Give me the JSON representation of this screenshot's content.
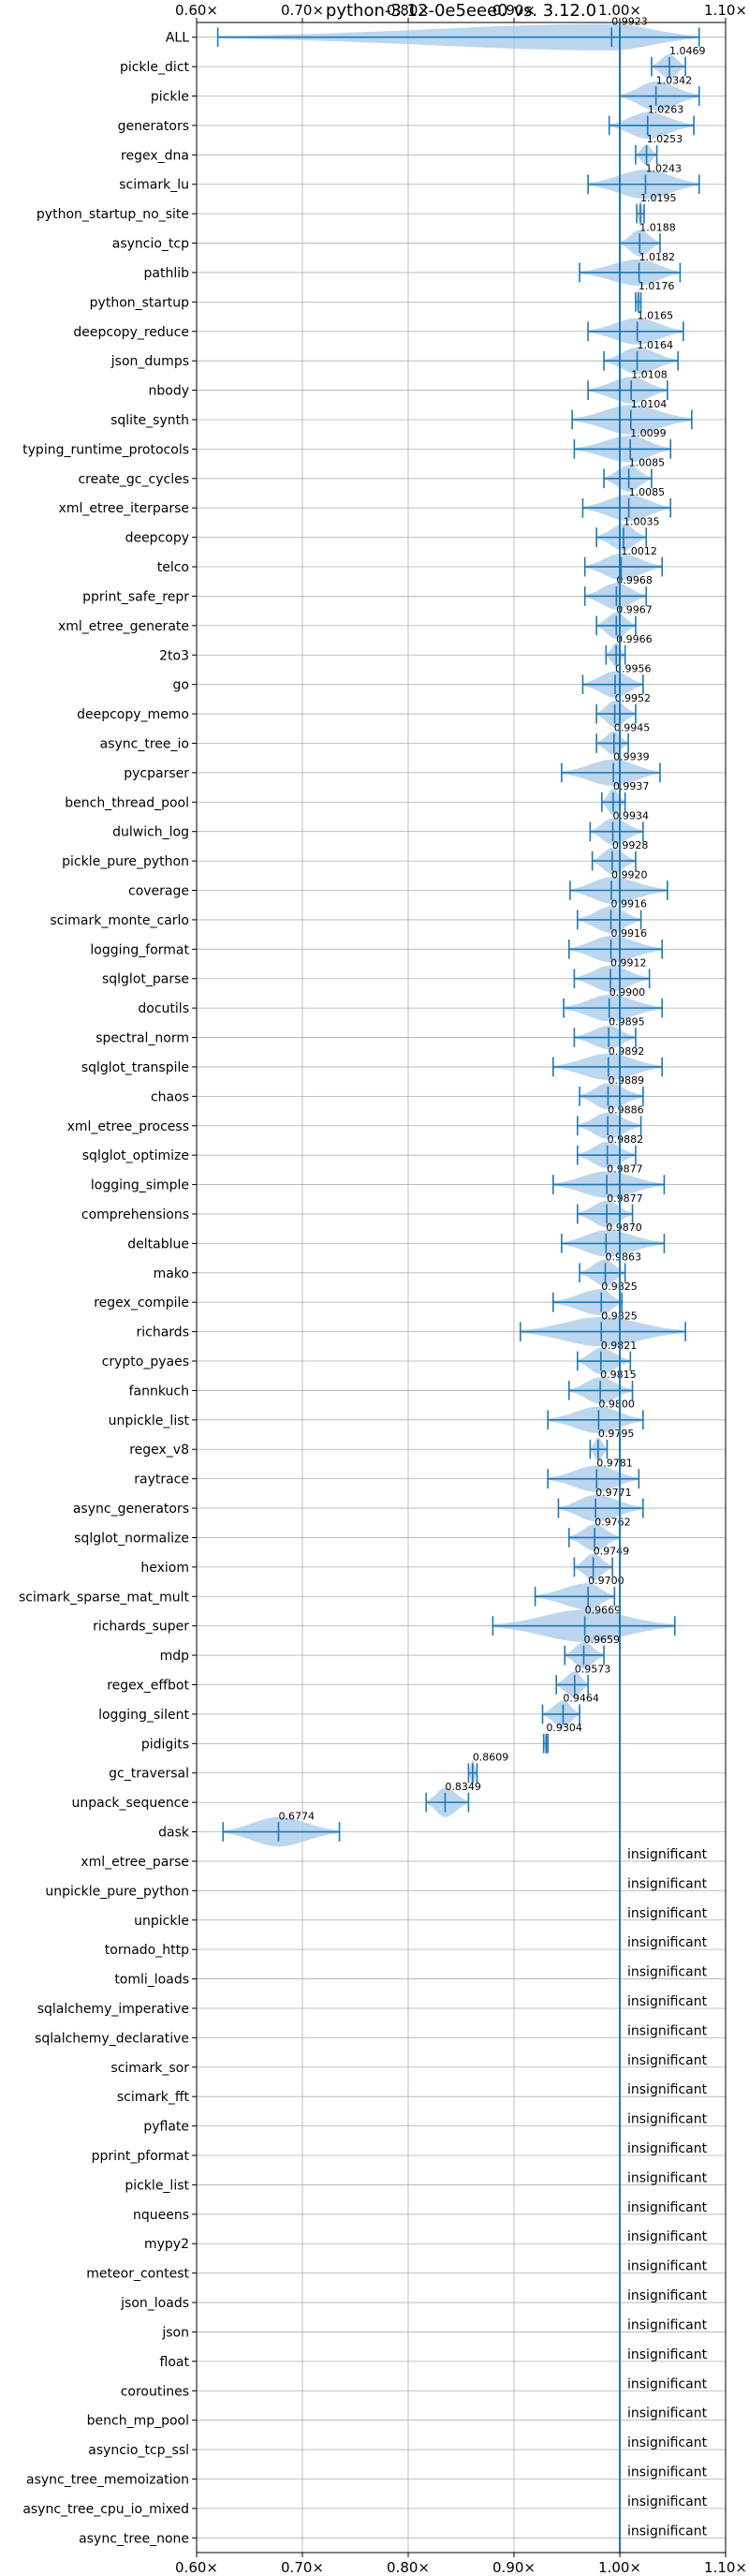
{
  "chart_data": {
    "type": "violin",
    "title": "python-3.12-0e5eee0 vs. 3.12.0",
    "xlim": [
      0.6,
      1.1
    ],
    "xticks": [
      {
        "value": 0.6,
        "label": "0.60×"
      },
      {
        "value": 0.7,
        "label": "0.70×"
      },
      {
        "value": 0.8,
        "label": "0.80×"
      },
      {
        "value": 0.9,
        "label": "0.90×"
      },
      {
        "value": 1.0,
        "label": "1.00×"
      },
      {
        "value": 1.1,
        "label": "1.10×"
      }
    ],
    "ticks_top_and_bottom": true,
    "grid": true,
    "reference_line": 1.0,
    "colors": {
      "violin": "#a6c8e8",
      "whisker": "#1f77b4",
      "grid": "#b0b0b0",
      "refline": "#1f77b4"
    },
    "insignificant_label": "insignificant",
    "benchmarks": [
      {
        "name": "ALL",
        "label": "0.9923",
        "center": 0.9923,
        "min": 0.62,
        "max": 1.075,
        "width": 0.45
      },
      {
        "name": "pickle_dict",
        "label": "1.0469",
        "center": 1.0469,
        "min": 1.03,
        "max": 1.062,
        "width": 0.42
      },
      {
        "name": "pickle",
        "label": "1.0342",
        "center": 1.0342,
        "min": 1.0,
        "max": 1.075,
        "width": 0.5
      },
      {
        "name": "generators",
        "label": "1.0263",
        "center": 1.0263,
        "min": 0.99,
        "max": 1.07,
        "width": 0.45
      },
      {
        "name": "regex_dna",
        "label": "1.0253",
        "center": 1.0253,
        "min": 1.015,
        "max": 1.035,
        "width": 0.35
      },
      {
        "name": "scimark_lu",
        "label": "1.0243",
        "center": 1.0243,
        "min": 0.97,
        "max": 1.075,
        "width": 0.5
      },
      {
        "name": "python_startup_no_site",
        "label": "1.0195",
        "center": 1.0195,
        "min": 1.016,
        "max": 1.023,
        "width": 0.45
      },
      {
        "name": "asyncio_tcp",
        "label": "1.0188",
        "center": 1.0188,
        "min": 1.0,
        "max": 1.038,
        "width": 0.45
      },
      {
        "name": "pathlib",
        "label": "1.0182",
        "center": 1.0182,
        "min": 0.962,
        "max": 1.057,
        "width": 0.45
      },
      {
        "name": "python_startup",
        "label": "1.0176",
        "center": 1.0176,
        "min": 1.015,
        "max": 1.02,
        "width": 0.45
      },
      {
        "name": "deepcopy_reduce",
        "label": "1.0165",
        "center": 1.0165,
        "min": 0.97,
        "max": 1.06,
        "width": 0.45
      },
      {
        "name": "json_dumps",
        "label": "1.0164",
        "center": 1.0164,
        "min": 0.985,
        "max": 1.055,
        "width": 0.45
      },
      {
        "name": "nbody",
        "label": "1.0108",
        "center": 1.0108,
        "min": 0.97,
        "max": 1.045,
        "width": 0.45
      },
      {
        "name": "sqlite_synth",
        "label": "1.0104",
        "center": 1.0104,
        "min": 0.955,
        "max": 1.068,
        "width": 0.5
      },
      {
        "name": "typing_runtime_protocols",
        "label": "1.0099",
        "center": 1.0099,
        "min": 0.957,
        "max": 1.048,
        "width": 0.45
      },
      {
        "name": "create_gc_cycles",
        "label": "1.0085",
        "center": 1.0085,
        "min": 0.985,
        "max": 1.03,
        "width": 0.45
      },
      {
        "name": "xml_etree_iterparse",
        "label": "1.0085",
        "center": 1.0085,
        "min": 0.965,
        "max": 1.048,
        "width": 0.45
      },
      {
        "name": "deepcopy",
        "label": "1.0035",
        "center": 1.0035,
        "min": 0.978,
        "max": 1.025,
        "width": 0.45
      },
      {
        "name": "telco",
        "label": "1.0012",
        "center": 1.0012,
        "min": 0.967,
        "max": 1.04,
        "width": 0.45
      },
      {
        "name": "pprint_safe_repr",
        "label": "0.9968",
        "center": 0.9968,
        "min": 0.967,
        "max": 1.025,
        "width": 0.45
      },
      {
        "name": "xml_etree_generate",
        "label": "0.9967",
        "center": 0.9967,
        "min": 0.978,
        "max": 1.015,
        "width": 0.45
      },
      {
        "name": "2to3",
        "label": "0.9966",
        "center": 0.9966,
        "min": 0.987,
        "max": 1.005,
        "width": 0.4
      },
      {
        "name": "go",
        "label": "0.9956",
        "center": 0.9956,
        "min": 0.965,
        "max": 1.022,
        "width": 0.45
      },
      {
        "name": "deepcopy_memo",
        "label": "0.9952",
        "center": 0.9952,
        "min": 0.978,
        "max": 1.015,
        "width": 0.45
      },
      {
        "name": "async_tree_io",
        "label": "0.9945",
        "center": 0.9945,
        "min": 0.978,
        "max": 1.008,
        "width": 0.4
      },
      {
        "name": "pycparser",
        "label": "0.9939",
        "center": 0.9939,
        "min": 0.945,
        "max": 1.038,
        "width": 0.45
      },
      {
        "name": "bench_thread_pool",
        "label": "0.9937",
        "center": 0.9937,
        "min": 0.983,
        "max": 1.005,
        "width": 0.45
      },
      {
        "name": "dulwich_log",
        "label": "0.9934",
        "center": 0.9934,
        "min": 0.972,
        "max": 1.022,
        "width": 0.45
      },
      {
        "name": "pickle_pure_python",
        "label": "0.9928",
        "center": 0.9928,
        "min": 0.974,
        "max": 1.015,
        "width": 0.45
      },
      {
        "name": "coverage",
        "label": "0.9920",
        "center": 0.992,
        "min": 0.953,
        "max": 1.045,
        "width": 0.45
      },
      {
        "name": "scimark_monte_carlo",
        "label": "0.9916",
        "center": 0.9916,
        "min": 0.96,
        "max": 1.02,
        "width": 0.45
      },
      {
        "name": "logging_format",
        "label": "0.9916",
        "center": 0.9916,
        "min": 0.952,
        "max": 1.04,
        "width": 0.45
      },
      {
        "name": "sqlglot_parse",
        "label": "0.9912",
        "center": 0.9912,
        "min": 0.957,
        "max": 1.028,
        "width": 0.45
      },
      {
        "name": "docutils",
        "label": "0.9900",
        "center": 0.99,
        "min": 0.947,
        "max": 1.04,
        "width": 0.45
      },
      {
        "name": "spectral_norm",
        "label": "0.9895",
        "center": 0.9895,
        "min": 0.957,
        "max": 1.015,
        "width": 0.4
      },
      {
        "name": "sqlglot_transpile",
        "label": "0.9892",
        "center": 0.9892,
        "min": 0.937,
        "max": 1.04,
        "width": 0.45
      },
      {
        "name": "chaos",
        "label": "0.9889",
        "center": 0.9889,
        "min": 0.962,
        "max": 1.022,
        "width": 0.45
      },
      {
        "name": "xml_etree_process",
        "label": "0.9886",
        "center": 0.9886,
        "min": 0.96,
        "max": 1.02,
        "width": 0.45
      },
      {
        "name": "sqlglot_optimize",
        "label": "0.9882",
        "center": 0.9882,
        "min": 0.96,
        "max": 1.015,
        "width": 0.45
      },
      {
        "name": "logging_simple",
        "label": "0.9877",
        "center": 0.9877,
        "min": 0.937,
        "max": 1.042,
        "width": 0.45
      },
      {
        "name": "comprehensions",
        "label": "0.9877",
        "center": 0.9877,
        "min": 0.96,
        "max": 1.012,
        "width": 0.45
      },
      {
        "name": "deltablue",
        "label": "0.9870",
        "center": 0.987,
        "min": 0.945,
        "max": 1.042,
        "width": 0.45
      },
      {
        "name": "mako",
        "label": "0.9863",
        "center": 0.9863,
        "min": 0.962,
        "max": 1.005,
        "width": 0.45
      },
      {
        "name": "regex_compile",
        "label": "0.9825",
        "center": 0.9825,
        "min": 0.937,
        "max": 1.002,
        "width": 0.45
      },
      {
        "name": "richards",
        "label": "0.9825",
        "center": 0.9825,
        "min": 0.906,
        "max": 1.062,
        "width": 0.5
      },
      {
        "name": "crypto_pyaes",
        "label": "0.9821",
        "center": 0.9821,
        "min": 0.96,
        "max": 1.01,
        "width": 0.45
      },
      {
        "name": "fannkuch",
        "label": "0.9815",
        "center": 0.9815,
        "min": 0.952,
        "max": 1.012,
        "width": 0.45
      },
      {
        "name": "unpickle_list",
        "label": "0.9800",
        "center": 0.98,
        "min": 0.932,
        "max": 1.022,
        "width": 0.45
      },
      {
        "name": "regex_v8",
        "label": "0.9795",
        "center": 0.9795,
        "min": 0.972,
        "max": 0.988,
        "width": 0.4
      },
      {
        "name": "raytrace",
        "label": "0.9781",
        "center": 0.9781,
        "min": 0.932,
        "max": 1.018,
        "width": 0.45
      },
      {
        "name": "async_generators",
        "label": "0.9771",
        "center": 0.9771,
        "min": 0.942,
        "max": 1.022,
        "width": 0.45
      },
      {
        "name": "sqlglot_normalize",
        "label": "0.9762",
        "center": 0.9762,
        "min": 0.952,
        "max": 1.0,
        "width": 0.45
      },
      {
        "name": "hexiom",
        "label": "0.9749",
        "center": 0.9749,
        "min": 0.957,
        "max": 0.993,
        "width": 0.45
      },
      {
        "name": "scimark_sparse_mat_mult",
        "label": "0.9700",
        "center": 0.97,
        "min": 0.92,
        "max": 0.995,
        "width": 0.45
      },
      {
        "name": "richards_super",
        "label": "0.9669",
        "center": 0.9669,
        "min": 0.88,
        "max": 1.052,
        "width": 0.55
      },
      {
        "name": "mdp",
        "label": "0.9659",
        "center": 0.9659,
        "min": 0.948,
        "max": 0.985,
        "width": 0.45
      },
      {
        "name": "regex_effbot",
        "label": "0.9573",
        "center": 0.9573,
        "min": 0.94,
        "max": 0.97,
        "width": 0.45
      },
      {
        "name": "logging_silent",
        "label": "0.9464",
        "center": 0.9464,
        "min": 0.927,
        "max": 0.962,
        "width": 0.45
      },
      {
        "name": "pidigits",
        "label": "0.9304",
        "center": 0.9304,
        "min": 0.928,
        "max": 0.932,
        "width": 0.4
      },
      {
        "name": "gc_traversal",
        "label": "0.8609",
        "center": 0.8609,
        "min": 0.857,
        "max": 0.865,
        "width": 0.45
      },
      {
        "name": "unpack_sequence",
        "label": "0.8349",
        "center": 0.8349,
        "min": 0.817,
        "max": 0.857,
        "width": 0.5
      },
      {
        "name": "dask",
        "label": "0.6774",
        "center": 0.6774,
        "min": 0.625,
        "max": 0.735,
        "width": 0.5
      },
      {
        "name": "xml_etree_parse",
        "insignificant": true
      },
      {
        "name": "unpickle_pure_python",
        "insignificant": true
      },
      {
        "name": "unpickle",
        "insignificant": true
      },
      {
        "name": "tornado_http",
        "insignificant": true
      },
      {
        "name": "tomli_loads",
        "insignificant": true
      },
      {
        "name": "sqlalchemy_imperative",
        "insignificant": true
      },
      {
        "name": "sqlalchemy_declarative",
        "insignificant": true
      },
      {
        "name": "scimark_sor",
        "insignificant": true
      },
      {
        "name": "scimark_fft",
        "insignificant": true
      },
      {
        "name": "pyflate",
        "insignificant": true
      },
      {
        "name": "pprint_pformat",
        "insignificant": true
      },
      {
        "name": "pickle_list",
        "insignificant": true
      },
      {
        "name": "nqueens",
        "insignificant": true
      },
      {
        "name": "mypy2",
        "insignificant": true
      },
      {
        "name": "meteor_contest",
        "insignificant": true
      },
      {
        "name": "json_loads",
        "insignificant": true
      },
      {
        "name": "json",
        "insignificant": true
      },
      {
        "name": "float",
        "insignificant": true
      },
      {
        "name": "coroutines",
        "insignificant": true
      },
      {
        "name": "bench_mp_pool",
        "insignificant": true
      },
      {
        "name": "asyncio_tcp_ssl",
        "insignificant": true
      },
      {
        "name": "async_tree_memoization",
        "insignificant": true
      },
      {
        "name": "async_tree_cpu_io_mixed",
        "insignificant": true
      },
      {
        "name": "async_tree_none",
        "insignificant": true
      }
    ]
  }
}
